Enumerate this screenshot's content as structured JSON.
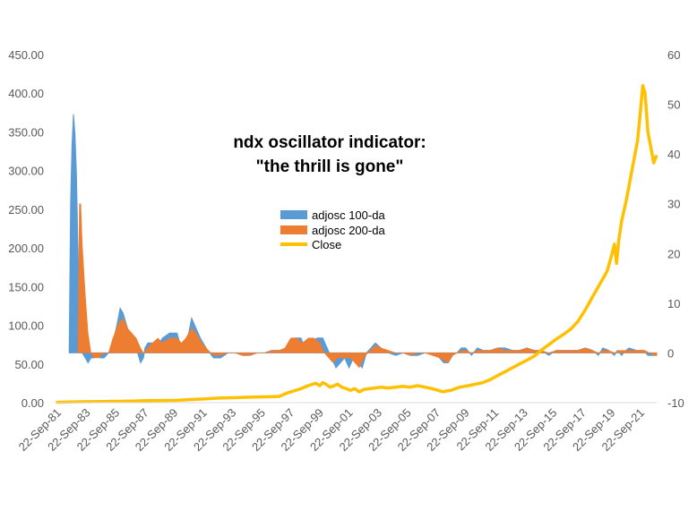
{
  "chart_data": {
    "type": "area",
    "title": "ndx oscillator indicator:",
    "subtitle": "\"the thrill is gone\"",
    "legend": {
      "placement": "center",
      "entries": [
        "adjosc 100-da",
        "adjosc 200-da",
        "Close"
      ]
    },
    "colors": {
      "s100": "#5B9BD5",
      "s200": "#ED7D31",
      "close": "#FFC000"
    },
    "grid": false,
    "x_axis": {
      "range": [
        1981.73,
        2022.9
      ],
      "tick_labels": [
        "22-Sep-81",
        "22-Sep-83",
        "22-Sep-85",
        "22-Sep-87",
        "22-Sep-89",
        "22-Sep-91",
        "22-Sep-93",
        "22-Sep-95",
        "22-Sep-97",
        "22-Sep-99",
        "22-Sep-01",
        "22-Sep-03",
        "22-Sep-05",
        "22-Sep-07",
        "22-Sep-09",
        "22-Sep-11",
        "22-Sep-13",
        "22-Sep-15",
        "22-Sep-17",
        "22-Sep-19",
        "22-Sep-21"
      ]
    },
    "y_left": {
      "range": [
        0,
        450
      ],
      "tick_labels": [
        "0.00",
        "50.00",
        "100.00",
        "150.00",
        "200.00",
        "250.00",
        "300.00",
        "350.00",
        "400.00",
        "450.00"
      ]
    },
    "y_right": {
      "range": [
        -10,
        60
      ],
      "tick_labels": [
        "-10",
        "0",
        "10",
        "20",
        "30",
        "40",
        "50",
        "60"
      ]
    },
    "series": [
      {
        "name": "adjosc 100-da",
        "axis": "right",
        "x": [
          1982.6,
          1982.7,
          1982.8,
          1982.9,
          1983.0,
          1983.1,
          1983.2,
          1983.3,
          1983.5,
          1983.7,
          1983.9,
          1984.1,
          1984.3,
          1984.5,
          1984.7,
          1985.0,
          1985.3,
          1985.6,
          1985.9,
          1986.1,
          1986.3,
          1986.6,
          1986.9,
          1987.2,
          1987.5,
          1987.7,
          1987.8,
          1988.0,
          1988.3,
          1988.6,
          1989.0,
          1989.5,
          1990.0,
          1990.3,
          1990.6,
          1990.8,
          1991.0,
          1991.3,
          1991.6,
          1992.0,
          1992.5,
          1993.0,
          1993.5,
          1994.0,
          1994.5,
          1995.0,
          1995.5,
          1996.0,
          1996.5,
          1997.0,
          1997.5,
          1998.0,
          1998.5,
          1998.8,
          1999.2,
          1999.6,
          2000.0,
          2000.3,
          2000.6,
          2000.9,
          2001.2,
          2001.5,
          2001.8,
          2002.1,
          2002.4,
          2002.7,
          2003.0,
          2003.3,
          2003.6,
          2004.0,
          2004.5,
          2005.0,
          2005.5,
          2006.0,
          2006.5,
          2007.0,
          2007.5,
          2008.0,
          2008.3,
          2008.6,
          2008.9,
          2009.2,
          2009.5,
          2009.8,
          2010.2,
          2010.6,
          2011.0,
          2011.5,
          2012.0,
          2012.5,
          2013.0,
          2013.5,
          2014.0,
          2014.5,
          2015.0,
          2015.5,
          2016.0,
          2016.5,
          2017.0,
          2017.5,
          2018.0,
          2018.5,
          2018.9,
          2019.2,
          2019.6,
          2020.0,
          2020.2,
          2020.5,
          2020.8,
          2021.0,
          2021.5,
          2022.0,
          2022.3,
          2022.6,
          2022.9
        ],
        "values": [
          0,
          30,
          42,
          48,
          44,
          36,
          22,
          10,
          0,
          -1,
          -2,
          -1,
          -1,
          0,
          -1,
          -1,
          0,
          2,
          6,
          9,
          8,
          5,
          3,
          1,
          -2,
          -1,
          1,
          2,
          2,
          1,
          3,
          4,
          4,
          1,
          2,
          4,
          7,
          5,
          3,
          1,
          -1,
          -1,
          0,
          0,
          -0.5,
          -0.5,
          0,
          0,
          0.5,
          0.5,
          0.5,
          3,
          3,
          1,
          2,
          3,
          3,
          1,
          -1,
          -3,
          -2,
          -1,
          -3,
          -1,
          -2,
          -3,
          0,
          1,
          2,
          1,
          0,
          -0.5,
          0,
          -0.5,
          -0.5,
          0,
          0,
          -1,
          -2,
          -2,
          -0.5,
          0,
          1,
          1,
          -0.5,
          1,
          0.5,
          0.5,
          1,
          1,
          0.5,
          0.5,
          1,
          0.5,
          0.5,
          -0.5,
          0.5,
          0.5,
          0.5,
          0.5,
          1,
          0.5,
          -0.5,
          1,
          0.5,
          -0.5,
          0.5,
          -0.5,
          0.5,
          1,
          0.5,
          0.5,
          -0.5,
          -0.5,
          -0.5
        ]
      },
      {
        "name": "adjosc 200-da",
        "axis": "right",
        "x": [
          1983.2,
          1983.3,
          1983.4,
          1983.5,
          1983.7,
          1983.9,
          1984.1,
          1984.3,
          1984.6,
          1985.0,
          1985.3,
          1985.6,
          1986.0,
          1986.3,
          1986.6,
          1986.9,
          1987.2,
          1987.5,
          1987.7,
          1988.0,
          1988.3,
          1988.7,
          1989.0,
          1989.5,
          1990.0,
          1990.3,
          1990.6,
          1991.0,
          1991.3,
          1991.7,
          1992.0,
          1992.5,
          1993.0,
          1993.5,
          1994.0,
          1994.5,
          1995.0,
          1995.5,
          1996.0,
          1996.5,
          1997.0,
          1997.4,
          1997.8,
          1998.2,
          1998.6,
          1999.0,
          1999.4,
          1999.8,
          2000.1,
          2000.4,
          2000.7,
          2001.0,
          2001.3,
          2001.6,
          2001.9,
          2002.2,
          2002.5,
          2002.8,
          2003.1,
          2003.4,
          2003.7,
          2004.0,
          2004.5,
          2005.0,
          2005.5,
          2006.0,
          2006.5,
          2007.0,
          2007.5,
          2008.0,
          2008.3,
          2008.6,
          2008.9,
          2009.2,
          2009.5,
          2009.8,
          2010.2,
          2010.6,
          2011.0,
          2011.5,
          2012.0,
          2012.5,
          2013.0,
          2013.5,
          2014.0,
          2014.5,
          2015.0,
          2015.5,
          2016.0,
          2016.5,
          2017.0,
          2017.5,
          2018.0,
          2018.5,
          2018.9,
          2019.2,
          2019.6,
          2020.0,
          2020.3,
          2020.6,
          2020.9,
          2021.2,
          2021.5,
          2021.8,
          2022.1,
          2022.4,
          2022.7,
          2022.9
        ],
        "values": [
          0,
          30,
          30,
          22,
          12,
          4,
          0,
          -1,
          -1,
          0,
          0,
          3,
          6,
          7,
          5,
          4,
          3,
          1,
          0,
          1,
          2,
          3,
          2,
          3,
          3,
          2,
          3,
          5,
          4,
          2,
          1,
          -0.5,
          -0.5,
          0,
          0,
          -0.5,
          -0.5,
          0,
          0,
          0.5,
          0.5,
          1,
          3,
          3,
          2,
          3,
          3,
          2,
          0,
          -1,
          -2,
          -1,
          -1,
          -1,
          -1,
          -2,
          -3,
          -1,
          0,
          1,
          1.5,
          1,
          0.5,
          0,
          0,
          -0.5,
          0,
          0,
          -0.5,
          -1,
          -1.5,
          -2,
          -0.5,
          0,
          0.5,
          0.5,
          0,
          0.5,
          0.5,
          0.5,
          1,
          0.5,
          0.5,
          0.5,
          1,
          0.5,
          0.5,
          0,
          0.5,
          0.5,
          0.5,
          0.5,
          1,
          0.5,
          0,
          0.5,
          0.5,
          0,
          0.5,
          0.5,
          0.5,
          0.5,
          0.5,
          0.5,
          0.5,
          0,
          -0.5,
          -0.5
        ]
      },
      {
        "name": "Close",
        "axis": "left",
        "x": [
          1981.7,
          1983.0,
          1985.0,
          1987.0,
          1988.0,
          1990.0,
          1991.0,
          1992.0,
          1993.0,
          1994.0,
          1995.0,
          1996.0,
          1997.0,
          1997.5,
          1998.0,
          1998.5,
          1999.0,
          1999.5,
          1999.8,
          2000.0,
          2000.2,
          2000.5,
          2000.8,
          2001.0,
          2001.3,
          2001.6,
          2001.9,
          2002.2,
          2002.5,
          2002.8,
          2003.2,
          2003.6,
          2004.0,
          2004.5,
          2005.0,
          2005.5,
          2006.0,
          2006.5,
          2007.0,
          2007.5,
          2007.9,
          2008.2,
          2008.5,
          2008.8,
          2009.1,
          2009.4,
          2009.7,
          2010.0,
          2010.5,
          2011.0,
          2011.5,
          2012.0,
          2012.5,
          2013.0,
          2013.5,
          2014.0,
          2014.5,
          2015.0,
          2015.5,
          2016.0,
          2016.5,
          2017.0,
          2017.5,
          2018.0,
          2018.3,
          2018.6,
          2018.9,
          2019.2,
          2019.5,
          2019.8,
          2020.0,
          2020.15,
          2020.3,
          2020.5,
          2020.8,
          2021.0,
          2021.2,
          2021.4,
          2021.6,
          2021.8,
          2021.95,
          2022.1,
          2022.3,
          2022.5,
          2022.7,
          2022.9
        ],
        "values": [
          0.5,
          1,
          1.5,
          2,
          2.5,
          3,
          4,
          5,
          6,
          6.5,
          7,
          7.5,
          8,
          12,
          15,
          18,
          22,
          25,
          22,
          26,
          24,
          20,
          22,
          24,
          20,
          18,
          16,
          18,
          14,
          17,
          18,
          19,
          20,
          19,
          20,
          21,
          20,
          22,
          20,
          18,
          16,
          14,
          15,
          16,
          18,
          20,
          21,
          22,
          24,
          26,
          30,
          35,
          40,
          45,
          50,
          55,
          60,
          68,
          75,
          82,
          88,
          95,
          105,
          120,
          130,
          140,
          150,
          160,
          170,
          190,
          205,
          180,
          210,
          235,
          260,
          280,
          300,
          320,
          340,
          380,
          410,
          400,
          350,
          330,
          310,
          320
        ]
      }
    ]
  }
}
